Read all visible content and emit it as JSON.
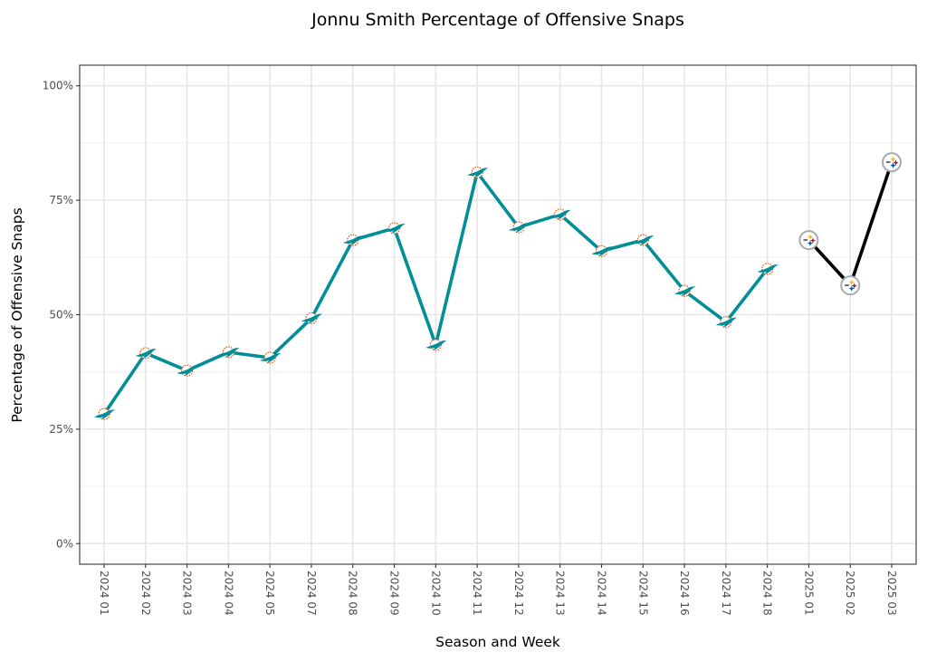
{
  "chart_data": {
    "type": "line",
    "title": "Jonnu Smith Percentage of Offensive Snaps",
    "xlabel": "Season and Week",
    "ylabel": "Percentage of Offensive Snaps",
    "ylim": [
      -0.045,
      1.045
    ],
    "y_ticks": [
      0,
      0.25,
      0.5,
      0.75,
      1.0
    ],
    "y_tick_labels": [
      "0%",
      "25%",
      "50%",
      "75%",
      "100%"
    ],
    "grid": true,
    "legend": "none",
    "categories": [
      "2024 01",
      "2024 02",
      "2024 03",
      "2024 04",
      "2024 05",
      "2024 07",
      "2024 08",
      "2024 09",
      "2024 10",
      "2024 11",
      "2024 12",
      "2024 13",
      "2024 14",
      "2024 15",
      "2024 16",
      "2024 17",
      "2024 18",
      "2025 01",
      "2025 02",
      "2025 03"
    ],
    "series": [
      {
        "name": "MIA",
        "team": "Miami Dolphins",
        "color": "#008E97",
        "marker": "dolphins-logo",
        "x": [
          "2024 01",
          "2024 02",
          "2024 03",
          "2024 04",
          "2024 05",
          "2024 07",
          "2024 08",
          "2024 09",
          "2024 10",
          "2024 11",
          "2024 12",
          "2024 13",
          "2024 14",
          "2024 15",
          "2024 16",
          "2024 17",
          "2024 18"
        ],
        "values": [
          0.283,
          0.416,
          0.378,
          0.418,
          0.406,
          0.492,
          0.663,
          0.689,
          0.434,
          0.811,
          0.691,
          0.719,
          0.639,
          0.663,
          0.552,
          0.484,
          0.6
        ]
      },
      {
        "name": "PIT",
        "team": "Pittsburgh Steelers",
        "color": "#000000",
        "marker": "steelers-logo",
        "x": [
          "2025 01",
          "2025 02",
          "2025 03"
        ],
        "values": [
          0.663,
          0.564,
          0.833
        ]
      }
    ]
  }
}
